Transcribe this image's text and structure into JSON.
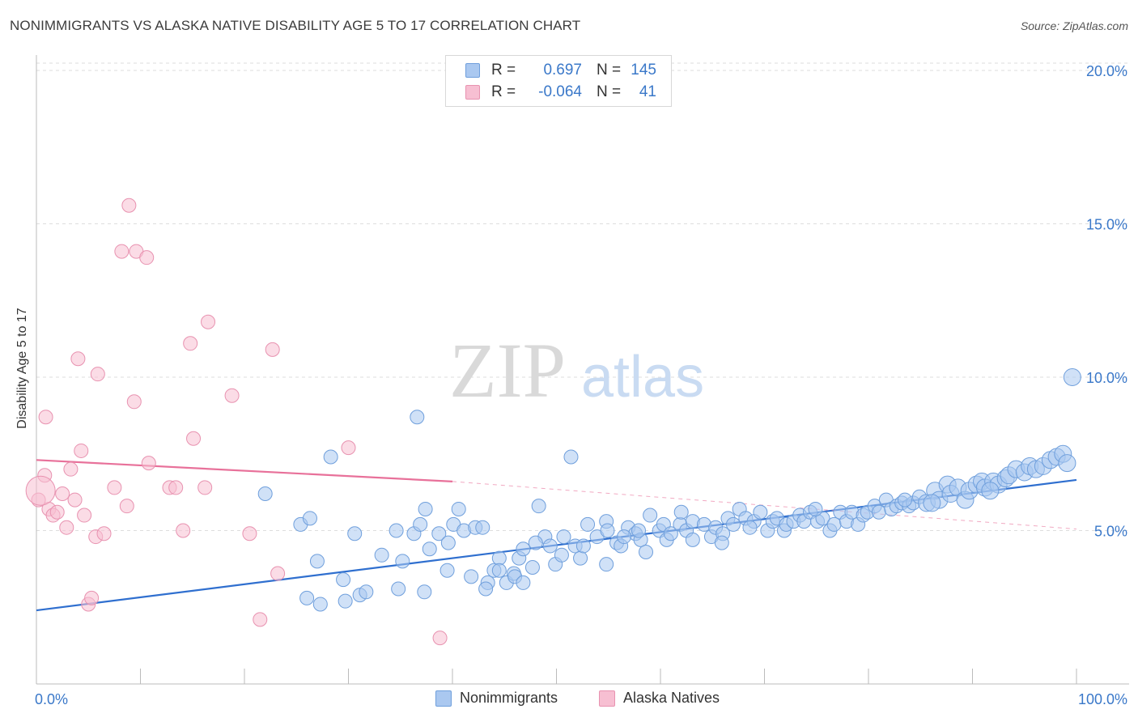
{
  "header": {
    "title": "NONIMMIGRANTS VS ALASKA NATIVE DISABILITY AGE 5 TO 17 CORRELATION CHART",
    "source": "Source: ZipAtlas.com"
  },
  "legend": {
    "rows": [
      {
        "r_label": "R =",
        "r_value": "0.697",
        "n_label": "N =",
        "n_value": "145"
      },
      {
        "r_label": "R =",
        "r_value": "-0.064",
        "n_label": "N =",
        "n_value": "41"
      }
    ],
    "series_names": [
      "Nonimmigrants",
      "Alaska Natives"
    ]
  },
  "watermark": {
    "zip": "ZIP",
    "atlas": "atlas"
  },
  "colors": {
    "blue_fill": "#aac8f0",
    "blue_stroke": "#6f9fdc",
    "blue_line": "#2f6fcf",
    "pink_fill": "#f7bfd2",
    "pink_stroke": "#e892b0",
    "pink_line": "#e8719a",
    "tick_label": "#3a78c9"
  },
  "chart_data": {
    "type": "scatter",
    "title": "NONIMMIGRANTS VS ALASKA NATIVE DISABILITY AGE 5 TO 17 CORRELATION CHART",
    "xlabel": "",
    "ylabel": "Disability Age 5 to 17",
    "xlim": [
      0,
      100
    ],
    "ylim": [
      0,
      20.5
    ],
    "x_tick_labels": [
      "0.0%",
      "100.0%"
    ],
    "y_ticks": [
      5,
      10,
      15,
      20
    ],
    "y_tick_labels": [
      "5.0%",
      "10.0%",
      "15.0%",
      "20.0%"
    ],
    "grid": true,
    "legend_position": "top-center",
    "series": [
      {
        "name": "Nonimmigrants",
        "color": "#aac8f0",
        "trend": {
          "x": [
            0,
            100
          ],
          "y": [
            2.4,
            6.65
          ]
        },
        "points": [
          [
            22.0,
            6.2
          ],
          [
            25.4,
            5.2
          ],
          [
            26.3,
            5.4
          ],
          [
            27.0,
            4.0
          ],
          [
            26.0,
            2.8
          ],
          [
            27.3,
            2.6
          ],
          [
            28.3,
            7.4
          ],
          [
            29.5,
            3.4
          ],
          [
            29.7,
            2.7
          ],
          [
            30.6,
            4.9
          ],
          [
            31.1,
            2.9
          ],
          [
            31.7,
            3.0
          ],
          [
            33.2,
            4.2
          ],
          [
            34.6,
            5.0
          ],
          [
            34.8,
            3.1
          ],
          [
            36.3,
            4.9
          ],
          [
            35.2,
            4.0
          ],
          [
            37.3,
            3.0
          ],
          [
            37.4,
            5.7
          ],
          [
            36.6,
            8.7
          ],
          [
            37.8,
            4.4
          ],
          [
            38.7,
            4.9
          ],
          [
            39.6,
            4.6
          ],
          [
            39.5,
            3.7
          ],
          [
            40.1,
            5.2
          ],
          [
            41.1,
            5.0
          ],
          [
            40.6,
            5.7
          ],
          [
            41.8,
            3.5
          ],
          [
            42.2,
            5.1
          ],
          [
            42.9,
            5.1
          ],
          [
            43.4,
            3.3
          ],
          [
            43.2,
            3.1
          ],
          [
            44.0,
            3.7
          ],
          [
            44.5,
            4.1
          ],
          [
            44.5,
            3.7
          ],
          [
            45.2,
            3.3
          ],
          [
            45.9,
            3.6
          ],
          [
            46.4,
            4.1
          ],
          [
            46.0,
            3.5
          ],
          [
            46.8,
            4.4
          ],
          [
            46.8,
            3.3
          ],
          [
            47.7,
            3.8
          ],
          [
            48.3,
            5.8
          ],
          [
            48.9,
            4.8
          ],
          [
            49.4,
            4.5
          ],
          [
            49.9,
            3.9
          ],
          [
            50.5,
            4.2
          ],
          [
            50.7,
            4.8
          ],
          [
            51.4,
            7.4
          ],
          [
            51.8,
            4.5
          ],
          [
            52.3,
            4.1
          ],
          [
            53.0,
            5.2
          ],
          [
            53.9,
            4.8
          ],
          [
            54.8,
            5.3
          ],
          [
            54.8,
            3.9
          ],
          [
            54.9,
            5.0
          ],
          [
            55.8,
            4.6
          ],
          [
            56.2,
            4.5
          ],
          [
            56.9,
            5.1
          ],
          [
            57.6,
            4.9
          ],
          [
            58.1,
            4.7
          ],
          [
            58.6,
            4.3
          ],
          [
            59.0,
            5.5
          ],
          [
            59.9,
            5.0
          ],
          [
            60.3,
            5.2
          ],
          [
            60.6,
            4.7
          ],
          [
            61.0,
            4.9
          ],
          [
            61.9,
            5.2
          ],
          [
            62.5,
            5.0
          ],
          [
            63.1,
            4.7
          ],
          [
            63.1,
            5.3
          ],
          [
            64.2,
            5.2
          ],
          [
            64.9,
            4.8
          ],
          [
            65.3,
            5.1
          ],
          [
            66.0,
            4.9
          ],
          [
            66.5,
            5.4
          ],
          [
            67.0,
            5.2
          ],
          [
            67.6,
            5.7
          ],
          [
            68.2,
            5.4
          ],
          [
            69.0,
            5.3
          ],
          [
            69.6,
            5.6
          ],
          [
            70.3,
            5.0
          ],
          [
            70.8,
            5.3
          ],
          [
            71.2,
            5.4
          ],
          [
            71.9,
            5.0
          ],
          [
            72.1,
            5.2
          ],
          [
            72.8,
            5.3
          ],
          [
            73.4,
            5.5
          ],
          [
            73.8,
            5.3
          ],
          [
            74.4,
            5.6
          ],
          [
            75.1,
            5.3
          ],
          [
            75.6,
            5.4
          ],
          [
            76.3,
            5.0
          ],
          [
            76.7,
            5.2
          ],
          [
            77.3,
            5.6
          ],
          [
            77.9,
            5.3
          ],
          [
            78.4,
            5.6
          ],
          [
            79.0,
            5.2
          ],
          [
            79.5,
            5.5
          ],
          [
            79.9,
            5.6
          ],
          [
            80.6,
            5.8
          ],
          [
            81.0,
            5.6
          ],
          [
            81.7,
            6.0
          ],
          [
            82.2,
            5.7
          ],
          [
            82.7,
            5.8
          ],
          [
            83.2,
            5.9
          ],
          [
            83.9,
            5.8
          ],
          [
            84.3,
            5.9
          ],
          [
            84.9,
            6.1
          ],
          [
            85.6,
            5.9
          ],
          [
            86.4,
            6.3
          ],
          [
            86.8,
            6.0
          ],
          [
            87.6,
            6.5
          ],
          [
            87.9,
            6.2
          ],
          [
            88.6,
            6.4
          ],
          [
            89.3,
            6.0
          ],
          [
            89.7,
            6.3
          ],
          [
            90.4,
            6.5
          ],
          [
            90.9,
            6.6
          ],
          [
            91.2,
            6.4
          ],
          [
            92.0,
            6.6
          ],
          [
            92.5,
            6.5
          ],
          [
            93.2,
            6.7
          ],
          [
            93.5,
            6.8
          ],
          [
            94.2,
            7.0
          ],
          [
            95.0,
            6.9
          ],
          [
            95.5,
            7.1
          ],
          [
            96.1,
            7.0
          ],
          [
            96.8,
            7.1
          ],
          [
            97.5,
            7.3
          ],
          [
            98.1,
            7.4
          ],
          [
            98.7,
            7.5
          ],
          [
            99.1,
            7.2
          ],
          [
            36.9,
            5.2
          ],
          [
            52.6,
            4.5
          ],
          [
            56.5,
            4.8
          ],
          [
            57.9,
            5.0
          ],
          [
            62.0,
            5.6
          ],
          [
            65.9,
            4.6
          ],
          [
            68.6,
            5.1
          ],
          [
            74.9,
            5.7
          ],
          [
            83.5,
            6.0
          ],
          [
            86.1,
            5.9
          ],
          [
            91.7,
            6.3
          ],
          [
            99.6,
            10.0
          ],
          [
            48.0,
            4.6
          ]
        ]
      },
      {
        "name": "Alaska Natives",
        "color": "#f7bfd2",
        "trend": {
          "x": [
            0,
            40
          ],
          "y": [
            7.3,
            6.6
          ],
          "dashed_to": [
            100,
            5.05
          ]
        },
        "points": [
          [
            0.2,
            6.0
          ],
          [
            0.8,
            6.8
          ],
          [
            0.9,
            8.7
          ],
          [
            1.2,
            5.7
          ],
          [
            1.6,
            5.5
          ],
          [
            2.0,
            5.6
          ],
          [
            2.5,
            6.2
          ],
          [
            2.9,
            5.1
          ],
          [
            3.3,
            7.0
          ],
          [
            3.7,
            6.0
          ],
          [
            4.0,
            10.6
          ],
          [
            4.3,
            7.6
          ],
          [
            4.6,
            5.5
          ],
          [
            5.0,
            2.6
          ],
          [
            5.3,
            2.8
          ],
          [
            5.7,
            4.8
          ],
          [
            5.9,
            10.1
          ],
          [
            6.5,
            4.9
          ],
          [
            7.5,
            6.4
          ],
          [
            8.2,
            14.1
          ],
          [
            8.7,
            5.8
          ],
          [
            8.9,
            15.6
          ],
          [
            9.4,
            9.2
          ],
          [
            9.6,
            14.1
          ],
          [
            10.6,
            13.9
          ],
          [
            10.8,
            7.2
          ],
          [
            12.8,
            6.4
          ],
          [
            13.4,
            6.4
          ],
          [
            14.1,
            5.0
          ],
          [
            14.8,
            11.1
          ],
          [
            15.1,
            8.0
          ],
          [
            16.2,
            6.4
          ],
          [
            16.5,
            11.8
          ],
          [
            18.8,
            9.4
          ],
          [
            20.5,
            4.9
          ],
          [
            21.5,
            2.1
          ],
          [
            22.7,
            10.9
          ],
          [
            23.2,
            3.6
          ],
          [
            30.0,
            7.7
          ],
          [
            38.8,
            1.5
          ],
          [
            0.4,
            6.3
          ]
        ]
      }
    ]
  }
}
